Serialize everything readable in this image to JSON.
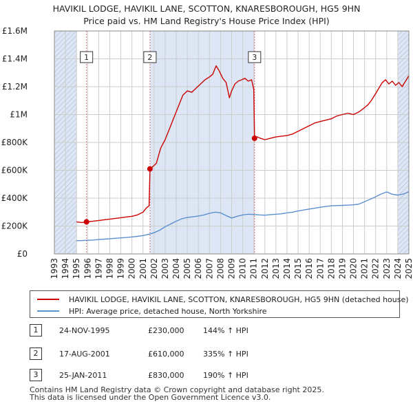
{
  "title_lines": [
    "HAVIKIL LODGE, HAVIKIL LANE, SCOTTON, KNARESBOROUGH, HG5 9HN",
    "Price paid vs. HM Land Registry's House Price Index (HPI)"
  ],
  "colors": {
    "property_line": "#cc0000",
    "hpi_line": "#5b8fcf",
    "grid": "#cccccc",
    "shade": "#dce6f5",
    "event_line": "#e07070"
  },
  "chart_data": {
    "type": "line",
    "title": "HAVIKIL LODGE, HAVIKIL LANE, SCOTTON, KNARESBOROUGH, HG5 9HN — Price paid vs. HM Land Registry's House Price Index (HPI)",
    "xlabel": "",
    "ylabel": "",
    "xlim": [
      1993,
      2025
    ],
    "ylim": [
      0,
      1600000
    ],
    "x_ticks": [
      1993,
      1994,
      1995,
      1996,
      1997,
      1998,
      1999,
      2000,
      2001,
      2002,
      2003,
      2004,
      2005,
      2006,
      2007,
      2008,
      2009,
      2010,
      2011,
      2012,
      2013,
      2014,
      2015,
      2016,
      2017,
      2018,
      2019,
      2020,
      2021,
      2022,
      2023,
      2024,
      2025
    ],
    "y_ticks": [
      {
        "value": 0,
        "label": "£0"
      },
      {
        "value": 200000,
        "label": "£200K"
      },
      {
        "value": 400000,
        "label": "£400K"
      },
      {
        "value": 600000,
        "label": "£600K"
      },
      {
        "value": 800000,
        "label": "£800K"
      },
      {
        "value": 1000000,
        "label": "£1M"
      },
      {
        "value": 1200000,
        "label": "£1.2M"
      },
      {
        "value": 1400000,
        "label": "£1.4M"
      },
      {
        "value": 1600000,
        "label": "£1.6M"
      }
    ],
    "shaded_ranges": [
      {
        "from": 1993,
        "to": 1995.0
      },
      {
        "from": 2001.63,
        "to": 2011.07
      },
      {
        "from": 2024.0,
        "to": 2025
      }
    ],
    "series": [
      {
        "name": "HAVIKIL LODGE, HAVIKIL LANE, SCOTTON, KNARESBOROUGH, HG5 9HN (detached house)",
        "color": "#cc0000",
        "x": [
          1995.0,
          1995.5,
          1995.9,
          1996.5,
          1997,
          1997.5,
          1998,
          1998.5,
          1999,
          1999.5,
          2000,
          2000.5,
          2001,
          2001.3,
          2001.55,
          2001.63,
          2001.8,
          2002.2,
          2002.6,
          2003,
          2003.4,
          2003.8,
          2004.2,
          2004.6,
          2005,
          2005.4,
          2005.8,
          2006.2,
          2006.6,
          2007,
          2007.3,
          2007.6,
          2007.9,
          2008.2,
          2008.5,
          2008.8,
          2009.0,
          2009.3,
          2009.6,
          2009.9,
          2010.2,
          2010.5,
          2010.8,
          2011.0,
          2011.07,
          2011.3,
          2011.6,
          2012,
          2012.5,
          2013,
          2013.5,
          2014,
          2014.5,
          2015,
          2015.5,
          2016,
          2016.5,
          2017,
          2017.5,
          2018,
          2018.5,
          2019,
          2019.5,
          2020,
          2020.5,
          2021,
          2021.3,
          2021.6,
          2022,
          2022.3,
          2022.6,
          2022.9,
          2023.2,
          2023.5,
          2023.8,
          2024.1,
          2024.4,
          2024.7,
          2025
        ],
        "values": [
          230000,
          225000,
          230000,
          235000,
          240000,
          245000,
          250000,
          255000,
          260000,
          265000,
          270000,
          280000,
          300000,
          330000,
          345000,
          610000,
          620000,
          650000,
          760000,
          820000,
          900000,
          980000,
          1060000,
          1140000,
          1170000,
          1160000,
          1190000,
          1220000,
          1250000,
          1270000,
          1290000,
          1350000,
          1310000,
          1260000,
          1230000,
          1120000,
          1170000,
          1220000,
          1240000,
          1250000,
          1260000,
          1240000,
          1250000,
          1180000,
          830000,
          840000,
          830000,
          820000,
          830000,
          840000,
          845000,
          850000,
          860000,
          880000,
          900000,
          920000,
          940000,
          950000,
          960000,
          970000,
          990000,
          1000000,
          1010000,
          1000000,
          1020000,
          1050000,
          1070000,
          1100000,
          1150000,
          1190000,
          1230000,
          1250000,
          1220000,
          1240000,
          1210000,
          1230000,
          1200000,
          1240000,
          1280000
        ]
      },
      {
        "name": "HPI: Average price, detached house, North Yorkshire",
        "color": "#5b8fcf",
        "x": [
          1995.0,
          1995.5,
          1996,
          1996.5,
          1997,
          1997.5,
          1998,
          1998.5,
          1999,
          1999.5,
          2000,
          2000.5,
          2001,
          2001.5,
          2002,
          2002.5,
          2003,
          2003.5,
          2004,
          2004.5,
          2005,
          2005.5,
          2006,
          2006.5,
          2007,
          2007.5,
          2008,
          2008.5,
          2009,
          2009.5,
          2010,
          2010.5,
          2011,
          2011.5,
          2012,
          2012.5,
          2013,
          2013.5,
          2014,
          2014.5,
          2015,
          2015.5,
          2016,
          2016.5,
          2017,
          2017.5,
          2018,
          2018.5,
          2019,
          2019.5,
          2020,
          2020.5,
          2021,
          2021.5,
          2022,
          2022.5,
          2023,
          2023.5,
          2024,
          2024.5,
          2025
        ],
        "values": [
          95000,
          96000,
          98000,
          100000,
          103000,
          106000,
          109000,
          112000,
          115000,
          118000,
          122000,
          126000,
          132000,
          140000,
          152000,
          170000,
          195000,
          215000,
          235000,
          252000,
          262000,
          266000,
          272000,
          280000,
          292000,
          300000,
          295000,
          275000,
          258000,
          270000,
          280000,
          285000,
          283000,
          280000,
          278000,
          282000,
          285000,
          288000,
          295000,
          300000,
          308000,
          315000,
          322000,
          328000,
          335000,
          340000,
          345000,
          347000,
          348000,
          350000,
          352000,
          358000,
          375000,
          392000,
          410000,
          430000,
          445000,
          428000,
          422000,
          430000,
          445000
        ]
      }
    ],
    "sales": [
      {
        "label": "1",
        "x": 1995.9,
        "value": 230000
      },
      {
        "label": "2",
        "x": 2001.63,
        "value": 610000
      },
      {
        "label": "3",
        "x": 2011.07,
        "value": 830000
      }
    ]
  },
  "legend": {
    "property": "HAVIKIL LODGE, HAVIKIL LANE, SCOTTON, KNARESBOROUGH, HG5 9HN (detached house)",
    "hpi": "HPI: Average price, detached house, North Yorkshire"
  },
  "sales_table": [
    {
      "num": "1",
      "date": "24-NOV-1995",
      "price": "£230,000",
      "hpi": "144% ↑ HPI"
    },
    {
      "num": "2",
      "date": "17-AUG-2001",
      "price": "£610,000",
      "hpi": "335% ↑ HPI"
    },
    {
      "num": "3",
      "date": "25-JAN-2011",
      "price": "£830,000",
      "hpi": "190% ↑ HPI"
    }
  ],
  "footer": [
    "Contains HM Land Registry data © Crown copyright and database right 2025.",
    "This data is licensed under the Open Government Licence v3.0."
  ]
}
